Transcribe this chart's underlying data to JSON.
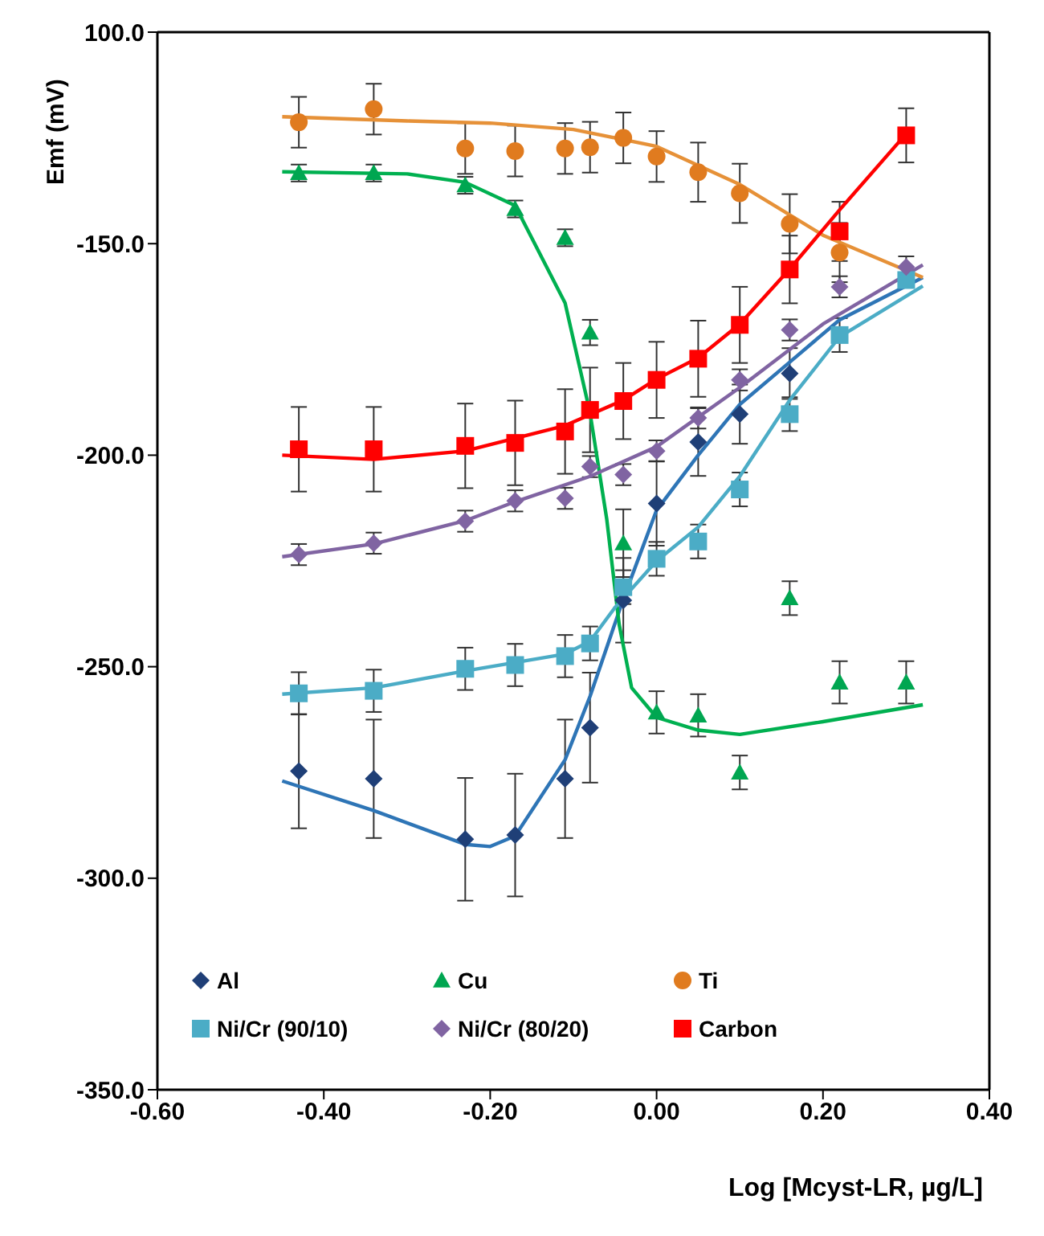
{
  "chart_data": {
    "type": "scatter",
    "xlabel": "Log  [Mcyst-LR, µg/L]",
    "ylabel": "Emf (mV)",
    "xlim": [
      -0.6,
      0.4
    ],
    "ylim": [
      -350,
      -100
    ],
    "xticks": [
      {
        "value": -0.6,
        "label": "-0.60"
      },
      {
        "value": -0.4,
        "label": "-0.40"
      },
      {
        "value": -0.2,
        "label": "-0.20"
      },
      {
        "value": 0,
        "label": "0.00"
      },
      {
        "value": 0.2,
        "label": "0.20"
      },
      {
        "value": 0.4,
        "label": "0.40"
      }
    ],
    "yticks": [
      {
        "value": -100,
        "label": "100.0"
      },
      {
        "value": -150,
        "label": "-150.0"
      },
      {
        "value": -200,
        "label": "-200.0"
      },
      {
        "value": -250,
        "label": "-250.0"
      },
      {
        "value": -300,
        "label": "-300.0"
      },
      {
        "value": -350,
        "label": "-350.0"
      }
    ],
    "grid": false,
    "legend": "bottom left",
    "x": [
      -0.43,
      -0.34,
      -0.23,
      -0.17,
      -0.11,
      -0.08,
      -0.04,
      0.0,
      0.05,
      0.1,
      0.16,
      0.22,
      0.3
    ],
    "series": [
      {
        "type": "line",
        "color": "#2e75b6",
        "marker": "none",
        "x": [
          -0.45,
          -0.34,
          -0.23,
          -0.2,
          -0.17,
          -0.11,
          -0.08,
          -0.04,
          0.0,
          0.05,
          0.1,
          0.16,
          0.22,
          0.32
        ],
        "values": [
          -277,
          -284,
          -292,
          -292.5,
          -290,
          -272,
          -257,
          -234,
          -213,
          -200,
          -188,
          -178,
          -168,
          -158
        ]
      },
      {
        "type": "line",
        "color": "#00b050",
        "marker": "none",
        "x": [
          -0.45,
          -0.3,
          -0.23,
          -0.17,
          -0.11,
          -0.08,
          -0.06,
          -0.045,
          -0.03,
          0.0,
          0.05,
          0.1,
          0.2,
          0.32
        ],
        "values": [
          -133,
          -133.5,
          -135.5,
          -141,
          -164,
          -190,
          -215,
          -240,
          -255,
          -262,
          -265,
          -266,
          -263,
          -259
        ]
      },
      {
        "type": "line",
        "color": "#e69138",
        "marker": "none",
        "x": [
          -0.45,
          -0.3,
          -0.2,
          -0.1,
          0.0,
          0.1,
          0.2,
          0.32
        ],
        "values": [
          -120,
          -121,
          -121.5,
          -123,
          -127,
          -136,
          -148,
          -158
        ]
      },
      {
        "type": "line",
        "color": "#4bacc6",
        "marker": "none",
        "x": [
          -0.45,
          -0.34,
          -0.23,
          -0.11,
          -0.08,
          -0.05,
          0.0,
          0.05,
          0.1,
          0.16,
          0.22,
          0.32
        ],
        "values": [
          -256.5,
          -255,
          -251,
          -247,
          -244,
          -236,
          -225,
          -217,
          -205,
          -187,
          -172,
          -160
        ]
      },
      {
        "type": "line",
        "color": "#8064a2",
        "marker": "none",
        "x": [
          -0.45,
          -0.34,
          -0.23,
          -0.17,
          -0.08,
          0.0,
          0.1,
          0.2,
          0.32
        ],
        "values": [
          -224,
          -221,
          -215.5,
          -211,
          -205,
          -198,
          -184,
          -169,
          -155
        ]
      },
      {
        "type": "line",
        "color": "#ff0000",
        "marker": "none",
        "x": [
          -0.45,
          -0.34,
          -0.23,
          -0.17,
          -0.11,
          -0.04,
          0.0,
          0.05,
          0.1,
          0.16,
          0.22,
          0.3
        ],
        "values": [
          -200,
          -201,
          -199,
          -196,
          -193,
          -187,
          -182,
          -177,
          -169,
          -156,
          -142,
          -124
        ]
      },
      {
        "name": "Al",
        "type": "scatter",
        "color": "#1f3f77",
        "marker": "diamond",
        "values": [
          -274.7,
          -276.5,
          -290.8,
          -289.8,
          -276.5,
          -264.4,
          -234.3,
          -211.4,
          -196.9,
          -190.3,
          -180.7,
          null,
          null
        ],
        "errors": [
          13.5,
          14,
          14.5,
          14.5,
          14,
          13,
          10,
          10,
          8,
          7,
          6,
          null,
          null
        ]
      },
      {
        "name": "Cu",
        "type": "scatter",
        "color": "#00a651",
        "marker": "triangle",
        "values": [
          -133.3,
          -133.3,
          -136.2,
          -141.8,
          -148.6,
          -171,
          -220.8,
          -260.8,
          -261.5,
          -275,
          -233.8,
          -253.7,
          -253.7
        ],
        "errors": [
          2,
          2,
          2,
          2,
          2,
          3,
          8,
          5,
          5,
          4,
          4,
          5,
          5
        ]
      },
      {
        "name": "Ti",
        "type": "scatter",
        "color": "#e07b1f",
        "marker": "circle",
        "values": [
          -121.3,
          -118.2,
          -127.5,
          -128.1,
          -127.5,
          -127.2,
          -125,
          -129.4,
          -133.1,
          -138.1,
          -145.3,
          -152.1,
          null
        ],
        "errors": [
          6,
          6,
          6,
          6,
          6,
          6,
          6,
          6,
          7,
          7,
          7,
          7,
          null
        ]
      },
      {
        "name": "Ni/Cr (90/10)",
        "type": "scatter",
        "color": "#4bacc6",
        "marker": "square",
        "values": [
          -256.3,
          -255.7,
          -250.5,
          -249.6,
          -247.5,
          -244.5,
          -231.2,
          -224.5,
          -220.4,
          -208.1,
          -190.3,
          -171.6,
          -158.6
        ],
        "errors": [
          5,
          5,
          5,
          5,
          5,
          4,
          4,
          4,
          4,
          4,
          4,
          4,
          null
        ]
      },
      {
        "name": "Ni/Cr (80/20)",
        "type": "scatter",
        "color": "#8064a2",
        "marker": "diamond",
        "values": [
          -223.5,
          -220.8,
          -215.6,
          -210.8,
          -210.2,
          -202.7,
          -204.6,
          -199,
          -191.2,
          -182.2,
          -170.4,
          -160.2,
          -155.5
        ],
        "errors": [
          2.5,
          2.5,
          2.5,
          2.5,
          2.5,
          2.5,
          2.5,
          2.5,
          2.5,
          2.5,
          2.5,
          2.5,
          2.5
        ]
      },
      {
        "name": "Carbon",
        "type": "scatter",
        "color": "#ff0000",
        "marker": "square",
        "values": [
          -198.6,
          -198.6,
          -197.8,
          -197.1,
          -194.4,
          -189.3,
          -187.2,
          -182.2,
          -177.2,
          -169.2,
          -156.1,
          -147.1,
          -124.4
        ],
        "errors": [
          10,
          10,
          10,
          10,
          10,
          10,
          9,
          9,
          9,
          9,
          8,
          7,
          6.4
        ]
      }
    ]
  }
}
